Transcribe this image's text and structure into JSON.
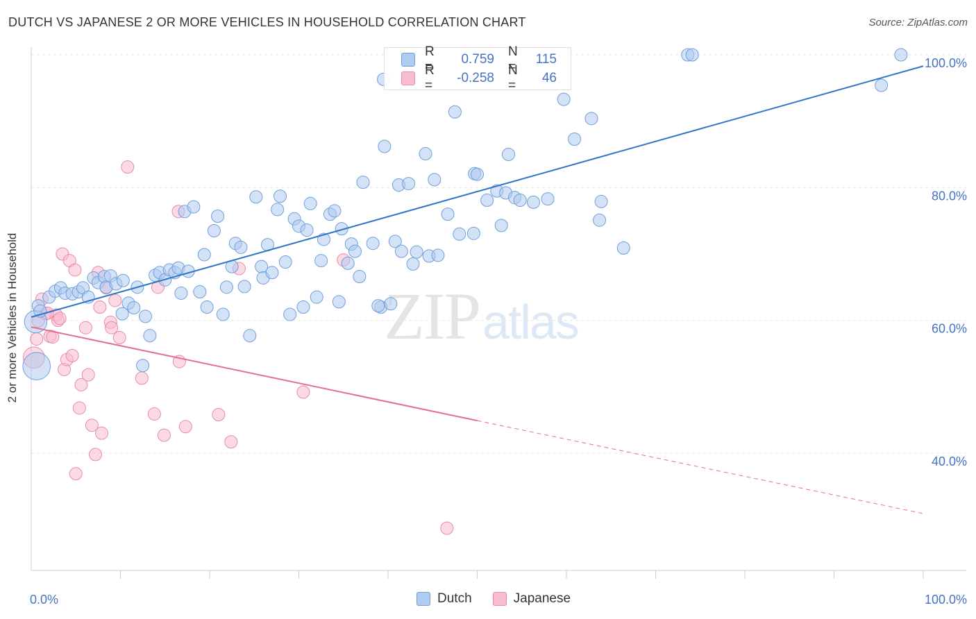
{
  "title": "DUTCH VS JAPANESE 2 OR MORE VEHICLES IN HOUSEHOLD CORRELATION CHART",
  "source": "Source: ZipAtlas.com",
  "watermark": {
    "zip": "ZIP",
    "atlas": "atlas"
  },
  "legend": {
    "r_label": "R =",
    "n_label": "N =",
    "rows": [
      {
        "series": "Dutch",
        "r": "0.759",
        "n": "115"
      },
      {
        "series": "Japanese",
        "r": "-0.258",
        "n": "46"
      }
    ]
  },
  "colors": {
    "dutch_fill": "#aecbf0",
    "dutch_stroke": "#6f9fd8",
    "dutch_line": "#2e74c9",
    "japanese_fill": "#f7bcd0",
    "japanese_stroke": "#e98aa9",
    "japanese_line": "#e36d96",
    "tick": "#4472c4",
    "grid": "#e6e6e6"
  },
  "chart_data": {
    "type": "scatter",
    "title": "DUTCH VS JAPANESE 2 OR MORE VEHICLES IN HOUSEHOLD CORRELATION CHART",
    "xlabel": "",
    "ylabel": "2 or more Vehicles in Household",
    "xlim": [
      0,
      100
    ],
    "ylim": [
      20,
      102
    ],
    "x_ticks": [
      "0.0%",
      "100.0%"
    ],
    "y_ticks": [
      "40.0%",
      "60.0%",
      "80.0%",
      "100.0%"
    ],
    "y_tick_values": [
      40,
      60,
      80,
      100
    ],
    "grid": "horizontal dashed",
    "legend_position": "top-center",
    "series": [
      {
        "name": "Dutch",
        "trend": {
          "x": [
            0,
            100
          ],
          "y": [
            60.5,
            98.3
          ]
        },
        "points": [
          [
            0.5,
            59.8,
            1.8
          ],
          [
            0.6,
            53.1,
            2.2
          ],
          [
            0.8,
            62.2,
            1
          ],
          [
            1.0,
            61.4,
            1
          ],
          [
            2,
            63.5,
            1
          ],
          [
            2.7,
            64.4,
            1
          ],
          [
            3.3,
            64.9,
            1
          ],
          [
            3.8,
            64.1,
            1
          ],
          [
            4.6,
            64.0,
            1
          ],
          [
            5.3,
            64.3,
            1
          ],
          [
            5.8,
            64.9,
            1
          ],
          [
            6.4,
            63.5,
            1
          ],
          [
            7,
            66.4,
            1
          ],
          [
            7.5,
            65.7,
            1
          ],
          [
            8.2,
            66.6,
            1
          ],
          [
            8.4,
            65.0,
            1
          ],
          [
            8.9,
            66.7,
            1
          ],
          [
            9.5,
            65.5,
            1
          ],
          [
            10.2,
            61.0,
            1
          ],
          [
            10.3,
            66.0,
            1
          ],
          [
            10.9,
            62.6,
            1
          ],
          [
            11.5,
            61.9,
            1
          ],
          [
            11.9,
            65.0,
            1
          ],
          [
            12.5,
            53.2,
            1
          ],
          [
            12.8,
            60.6,
            1
          ],
          [
            13.3,
            57.7,
            1
          ],
          [
            13.9,
            66.8,
            1
          ],
          [
            14.4,
            67.2,
            1
          ],
          [
            15.0,
            66.1,
            1
          ],
          [
            15.5,
            67.6,
            1
          ],
          [
            16.1,
            67.2,
            1
          ],
          [
            16.5,
            67.9,
            1
          ],
          [
            16.8,
            64.1,
            1
          ],
          [
            17.2,
            76.4,
            1
          ],
          [
            17.6,
            67.4,
            1
          ],
          [
            18.2,
            77.1,
            1
          ],
          [
            18.9,
            64.3,
            1
          ],
          [
            19.4,
            69.9,
            1
          ],
          [
            19.7,
            62.0,
            1
          ],
          [
            20.5,
            73.5,
            1
          ],
          [
            20.9,
            75.7,
            1
          ],
          [
            21.5,
            60.9,
            1
          ],
          [
            21.9,
            65.0,
            1
          ],
          [
            22.5,
            68.1,
            1
          ],
          [
            22.9,
            71.6,
            1
          ],
          [
            23.5,
            71.0,
            1
          ],
          [
            23.9,
            65.1,
            1
          ],
          [
            24.5,
            57.7,
            1
          ],
          [
            25.2,
            78.6,
            1
          ],
          [
            25.8,
            68.1,
            1
          ],
          [
            26.0,
            66.4,
            1
          ],
          [
            26.5,
            71.4,
            1
          ],
          [
            27.0,
            67.2,
            1
          ],
          [
            27.6,
            76.7,
            1
          ],
          [
            27.9,
            78.7,
            1
          ],
          [
            28.5,
            68.8,
            1
          ],
          [
            29.0,
            60.9,
            1
          ],
          [
            29.5,
            75.3,
            1
          ],
          [
            30.0,
            74.2,
            1
          ],
          [
            30.5,
            62.0,
            1
          ],
          [
            30.9,
            73.6,
            1
          ],
          [
            31.3,
            77.6,
            1
          ],
          [
            32.0,
            63.5,
            1
          ],
          [
            32.5,
            69.0,
            1
          ],
          [
            32.8,
            72.2,
            1
          ],
          [
            33.5,
            76.0,
            1
          ],
          [
            34.0,
            76.5,
            1
          ],
          [
            34.5,
            62.8,
            1
          ],
          [
            34.8,
            73.8,
            1
          ],
          [
            35.5,
            68.6,
            1
          ],
          [
            35.9,
            71.5,
            1
          ],
          [
            36.3,
            70.4,
            1
          ],
          [
            36.8,
            66.6,
            1
          ],
          [
            37.2,
            80.8,
            1
          ],
          [
            38.3,
            71.6,
            1
          ],
          [
            39.2,
            62.0,
            1
          ],
          [
            39.6,
            86.2,
            1
          ],
          [
            40.3,
            62.5,
            1
          ],
          [
            40.8,
            71.9,
            1
          ],
          [
            41.2,
            80.4,
            1
          ],
          [
            41.5,
            70.4,
            1
          ],
          [
            42.3,
            80.6,
            1
          ],
          [
            42.8,
            68.5,
            1
          ],
          [
            43.2,
            70.3,
            1
          ],
          [
            44.2,
            85.1,
            1
          ],
          [
            44.6,
            69.7,
            1
          ],
          [
            45.2,
            81.2,
            1
          ],
          [
            45.6,
            69.8,
            1
          ],
          [
            46.7,
            76.0,
            1
          ],
          [
            47.5,
            91.4,
            1
          ],
          [
            48.0,
            73.0,
            1
          ],
          [
            49.6,
            73.1,
            1
          ],
          [
            49.7,
            82.1,
            1
          ],
          [
            50.0,
            82.0,
            1
          ],
          [
            51.1,
            78.1,
            1
          ],
          [
            52.2,
            79.5,
            1
          ],
          [
            52.7,
            74.3,
            1
          ],
          [
            53.2,
            79.2,
            1
          ],
          [
            53.5,
            85.0,
            1
          ],
          [
            54.2,
            78.5,
            1
          ],
          [
            54.8,
            78.1,
            1
          ],
          [
            56.3,
            77.8,
            1
          ],
          [
            57.9,
            78.3,
            1
          ],
          [
            59.7,
            93.3,
            1
          ],
          [
            60.9,
            87.3,
            1
          ],
          [
            62.8,
            90.4,
            1
          ],
          [
            63.7,
            75.1,
            1
          ],
          [
            63.9,
            77.9,
            1
          ],
          [
            66.4,
            70.9,
            1
          ],
          [
            73.6,
            100.0,
            1
          ],
          [
            74.1,
            100.0,
            1
          ],
          [
            95.3,
            95.4,
            1
          ],
          [
            97.5,
            100.0,
            1
          ],
          [
            39.5,
            96.3,
            1
          ],
          [
            38.9,
            62.2,
            1
          ]
        ]
      },
      {
        "name": "Japanese",
        "trend": {
          "x": [
            0,
            50
          ],
          "y": [
            59.0,
            44.9
          ]
        },
        "trend_dashed": {
          "x": [
            50,
            100
          ],
          "y": [
            44.9,
            30.9
          ]
        },
        "points": [
          [
            0.3,
            54.4,
            1.7
          ],
          [
            0.6,
            57.2,
            1
          ],
          [
            0.8,
            59.9,
            1
          ],
          [
            1.2,
            63.2,
            1
          ],
          [
            1.6,
            61.0,
            1
          ],
          [
            2.1,
            57.6,
            1
          ],
          [
            2.4,
            57.5,
            1
          ],
          [
            2.8,
            60.8,
            1
          ],
          [
            3.0,
            60.0,
            1
          ],
          [
            3.2,
            60.3,
            1
          ],
          [
            3.5,
            70.0,
            1
          ],
          [
            3.7,
            52.6,
            1
          ],
          [
            4.0,
            54.1,
            1
          ],
          [
            4.3,
            69.0,
            1
          ],
          [
            4.6,
            54.7,
            1
          ],
          [
            4.9,
            67.6,
            1
          ],
          [
            5.0,
            36.9,
            1
          ],
          [
            5.4,
            46.8,
            1
          ],
          [
            5.6,
            50.3,
            1
          ],
          [
            6.1,
            58.9,
            1
          ],
          [
            6.4,
            51.8,
            1
          ],
          [
            6.8,
            44.2,
            1
          ],
          [
            7.2,
            39.8,
            1
          ],
          [
            7.5,
            67.2,
            1
          ],
          [
            7.7,
            62.0,
            1
          ],
          [
            7.9,
            43.0,
            1
          ],
          [
            8.4,
            64.9,
            1
          ],
          [
            8.9,
            59.7,
            1
          ],
          [
            9.0,
            58.9,
            1
          ],
          [
            9.4,
            63.0,
            1
          ],
          [
            9.9,
            57.4,
            1
          ],
          [
            10.8,
            83.1,
            1
          ],
          [
            12.4,
            51.3,
            1
          ],
          [
            13.8,
            45.9,
            1
          ],
          [
            14.2,
            65.0,
            1
          ],
          [
            14.9,
            42.7,
            1
          ],
          [
            16.5,
            76.4,
            1
          ],
          [
            16.6,
            53.8,
            1
          ],
          [
            17.3,
            44.0,
            1
          ],
          [
            21.0,
            45.8,
            1
          ],
          [
            22.4,
            41.7,
            1
          ],
          [
            23.3,
            67.8,
            1
          ],
          [
            30.5,
            49.2,
            1
          ],
          [
            35.0,
            69.1,
            1
          ],
          [
            46.6,
            28.7,
            1
          ],
          [
            1.8,
            61.1,
            1
          ]
        ]
      }
    ]
  },
  "ylabel": "2 or more Vehicles in Household",
  "x_tick_left": "0.0%",
  "x_tick_right": "100.0%"
}
